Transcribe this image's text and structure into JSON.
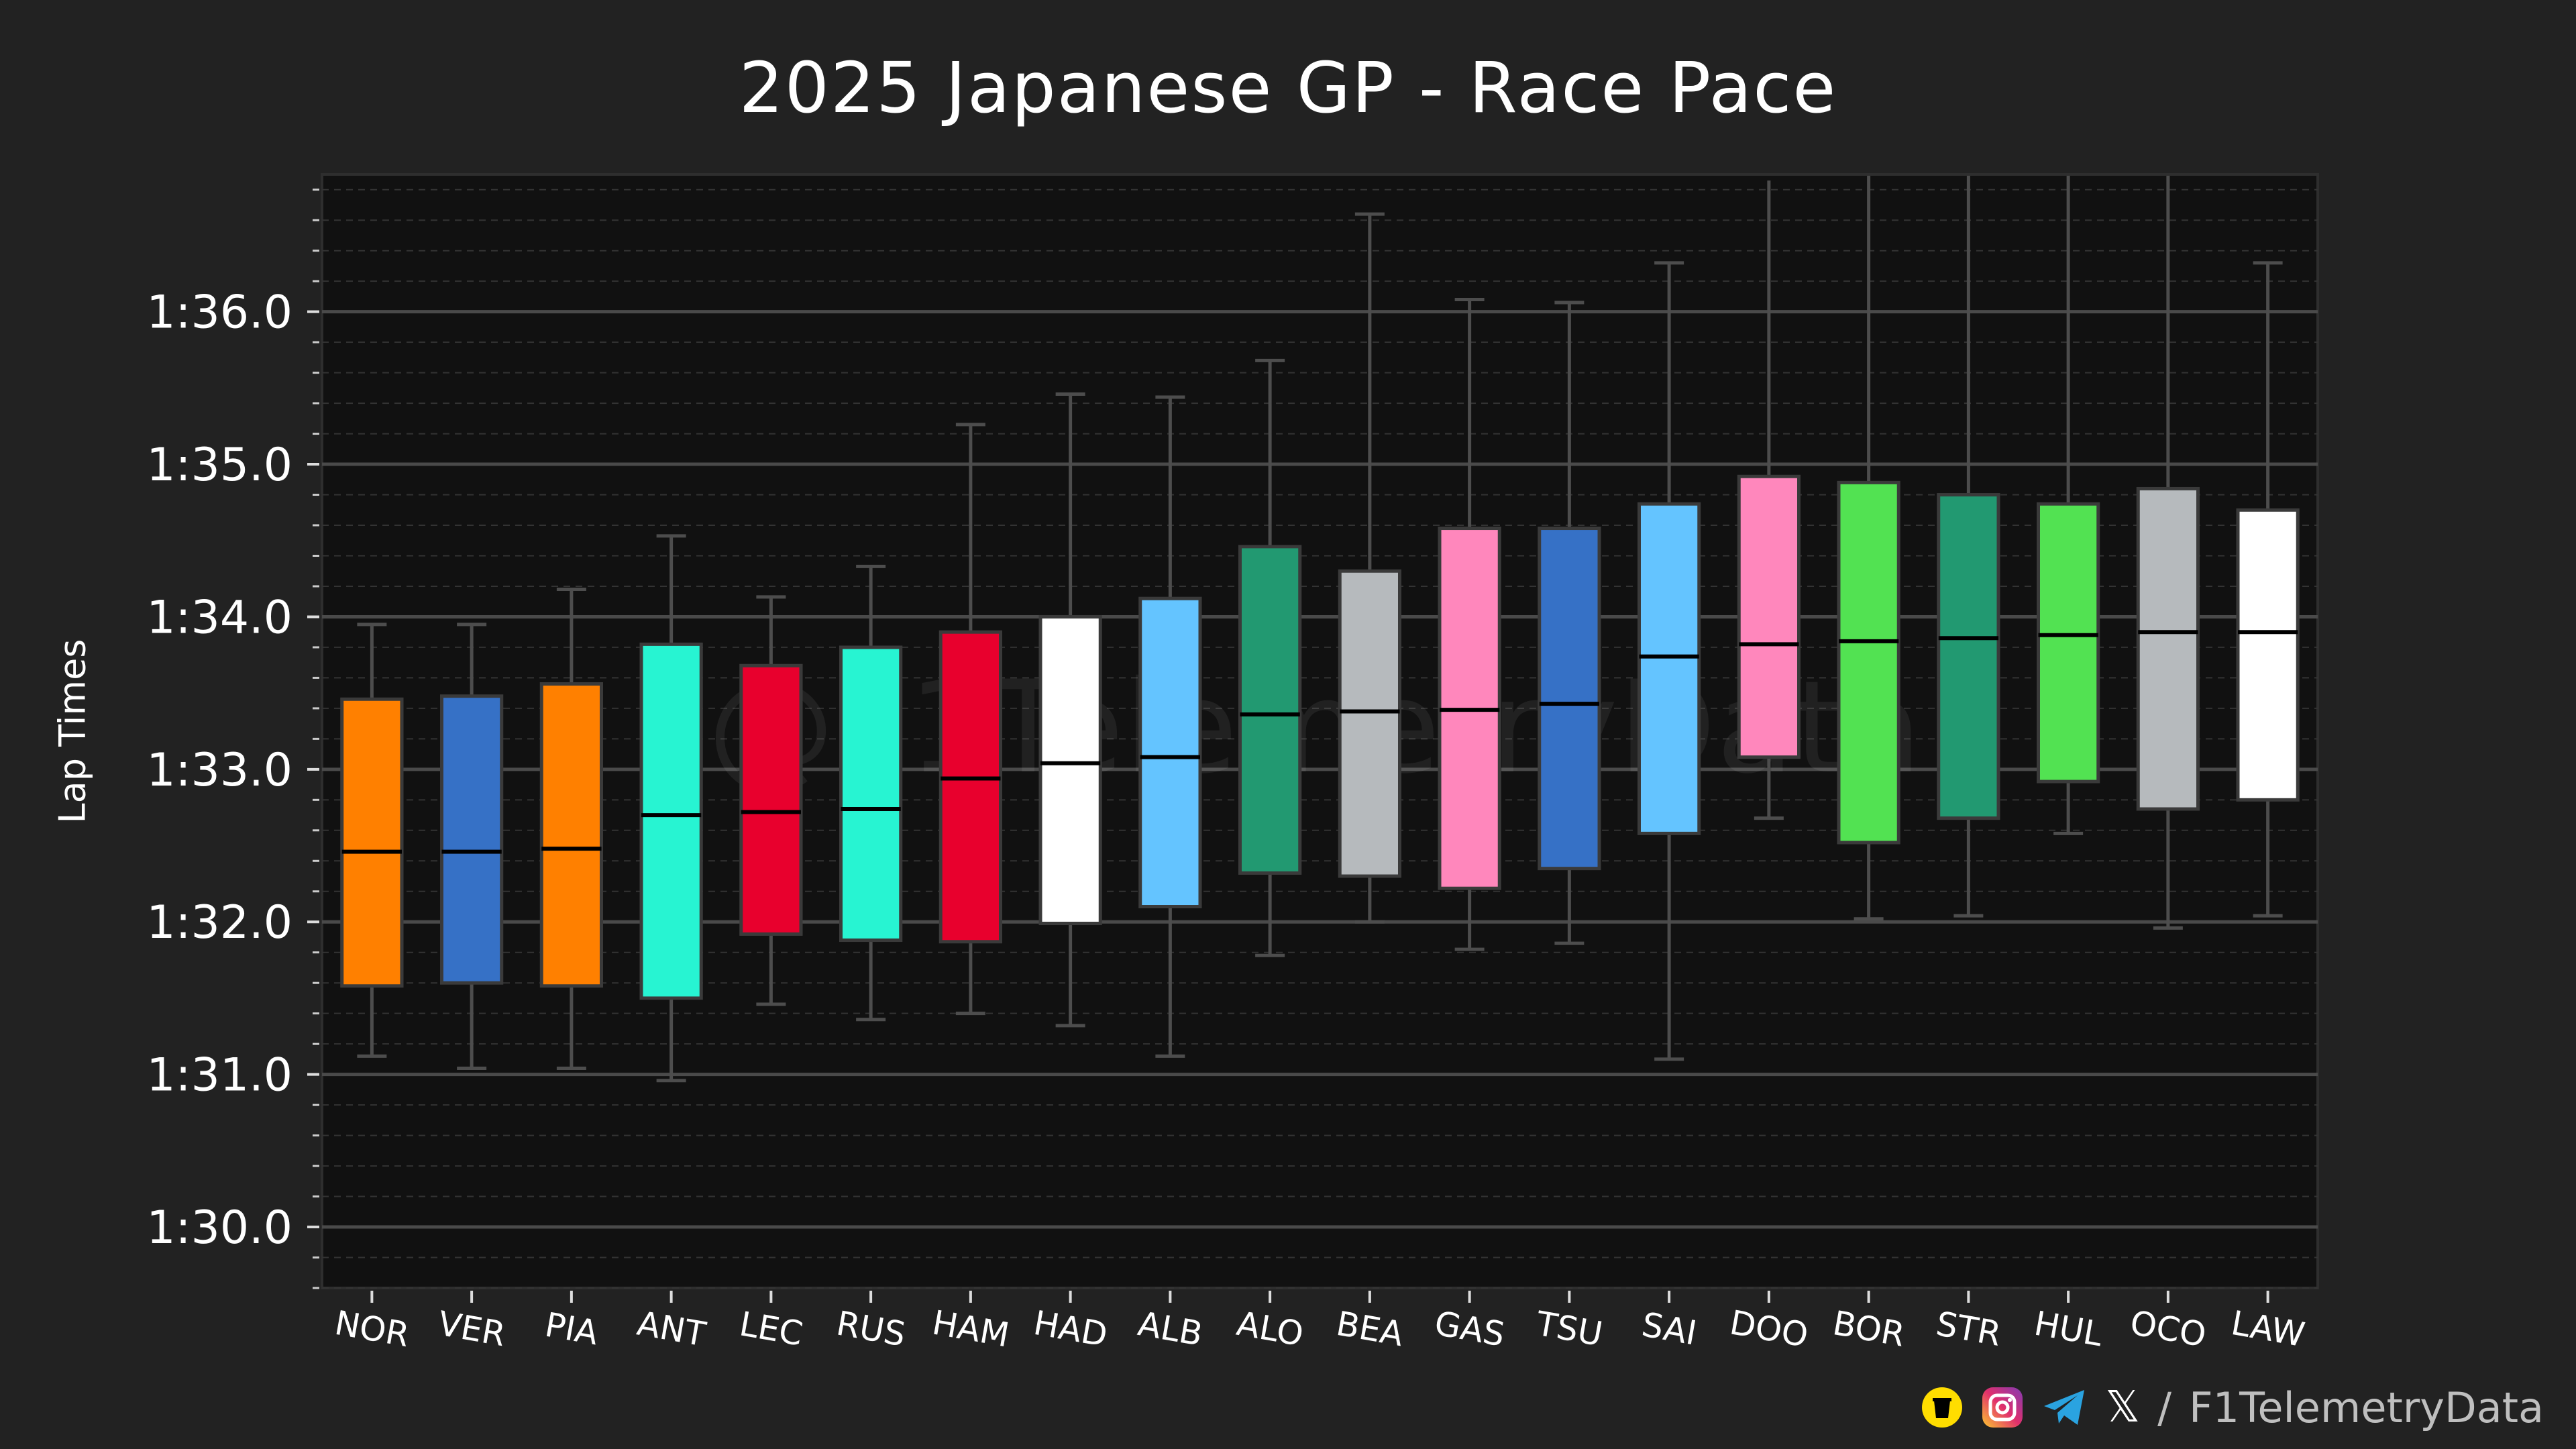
{
  "chart_data": {
    "type": "box",
    "title": "2025 Japanese GP - Race Pace",
    "xlabel": "",
    "ylabel": "Lap Times",
    "ylim": [
      89.6,
      96.9
    ],
    "yticks": [
      {
        "value": 90,
        "label": "1:30.0"
      },
      {
        "value": 91,
        "label": "1:31.0"
      },
      {
        "value": 92,
        "label": "1:32.0"
      },
      {
        "value": 93,
        "label": "1:33.0"
      },
      {
        "value": 94,
        "label": "1:34.0"
      },
      {
        "value": 95,
        "label": "1:35.0"
      },
      {
        "value": 96,
        "label": "1:36.0"
      }
    ],
    "watermark": "@F1TelemetryData",
    "grid": true,
    "drivers": [
      {
        "name": "NOR",
        "color": "#FF8000",
        "min": 91.12,
        "q1": 91.58,
        "median": 92.46,
        "q3": 93.46,
        "max": 93.95
      },
      {
        "name": "VER",
        "color": "#3671C6",
        "min": 91.04,
        "q1": 91.6,
        "median": 92.46,
        "q3": 93.48,
        "max": 93.95
      },
      {
        "name": "PIA",
        "color": "#FF8000",
        "min": 91.04,
        "q1": 91.58,
        "median": 92.48,
        "q3": 93.56,
        "max": 94.18
      },
      {
        "name": "ANT",
        "color": "#27F4D2",
        "min": 90.96,
        "q1": 91.5,
        "median": 92.7,
        "q3": 93.82,
        "max": 94.53
      },
      {
        "name": "LEC",
        "color": "#E8002D",
        "min": 91.46,
        "q1": 91.92,
        "median": 92.72,
        "q3": 93.68,
        "max": 94.13
      },
      {
        "name": "RUS",
        "color": "#27F4D2",
        "min": 91.36,
        "q1": 91.88,
        "median": 92.74,
        "q3": 93.8,
        "max": 94.33
      },
      {
        "name": "HAM",
        "color": "#E8002D",
        "min": 91.4,
        "q1": 91.87,
        "median": 92.94,
        "q3": 93.9,
        "max": 95.26
      },
      {
        "name": "HAD",
        "color": "#FFFFFF",
        "min": 91.32,
        "q1": 91.99,
        "median": 93.04,
        "q3": 94.0,
        "max": 95.46
      },
      {
        "name": "ALB",
        "color": "#64C4FF",
        "min": 91.12,
        "q1": 92.1,
        "median": 93.08,
        "q3": 94.12,
        "max": 95.44
      },
      {
        "name": "ALO",
        "color": "#229971",
        "min": 91.78,
        "q1": 92.32,
        "median": 93.36,
        "q3": 94.46,
        "max": 95.68
      },
      {
        "name": "BEA",
        "color": "#B6BABD",
        "min": 92.0,
        "q1": 92.3,
        "median": 93.38,
        "q3": 94.3,
        "max": 96.64
      },
      {
        "name": "GAS",
        "color": "#FF87BC",
        "min": 91.82,
        "q1": 92.22,
        "median": 93.39,
        "q3": 94.58,
        "max": 96.08
      },
      {
        "name": "TSU",
        "color": "#3671C6",
        "min": 91.86,
        "q1": 92.35,
        "median": 93.43,
        "q3": 94.58,
        "max": 96.06
      },
      {
        "name": "SAI",
        "color": "#64C4FF",
        "min": 91.1,
        "q1": 92.58,
        "median": 93.74,
        "q3": 94.74,
        "max": 96.32
      },
      {
        "name": "DOO",
        "color": "#FF87BC",
        "min": 92.68,
        "q1": 93.08,
        "median": 93.82,
        "q3": 94.92,
        "max": 96.86
      },
      {
        "name": "BOR",
        "color": "#52E252",
        "min": 92.02,
        "q1": 92.52,
        "median": 93.84,
        "q3": 94.88,
        "max": 96.9
      },
      {
        "name": "STR",
        "color": "#229971",
        "min": 92.04,
        "q1": 92.68,
        "median": 93.86,
        "q3": 94.8,
        "max": 96.9
      },
      {
        "name": "HUL",
        "color": "#52E252",
        "min": 92.58,
        "q1": 92.92,
        "median": 93.88,
        "q3": 94.74,
        "max": 96.9
      },
      {
        "name": "OCO",
        "color": "#B6BABD",
        "min": 91.96,
        "q1": 92.74,
        "median": 93.9,
        "q3": 94.84,
        "max": 96.9
      },
      {
        "name": "LAW",
        "color": "#FFFFFF",
        "min": 92.04,
        "q1": 92.8,
        "median": 93.9,
        "q3": 94.7,
        "max": 96.32
      }
    ]
  },
  "footer": {
    "handle": "F1TelemetryData",
    "separator": "/",
    "x_glyph": "𝕏"
  },
  "colors": {
    "background": "#222222",
    "plot_background": "#111111",
    "grid_major": "#4a4a4a",
    "grid_minor": "#333333",
    "whisker": "#4d4d4d",
    "median": "#000000"
  }
}
